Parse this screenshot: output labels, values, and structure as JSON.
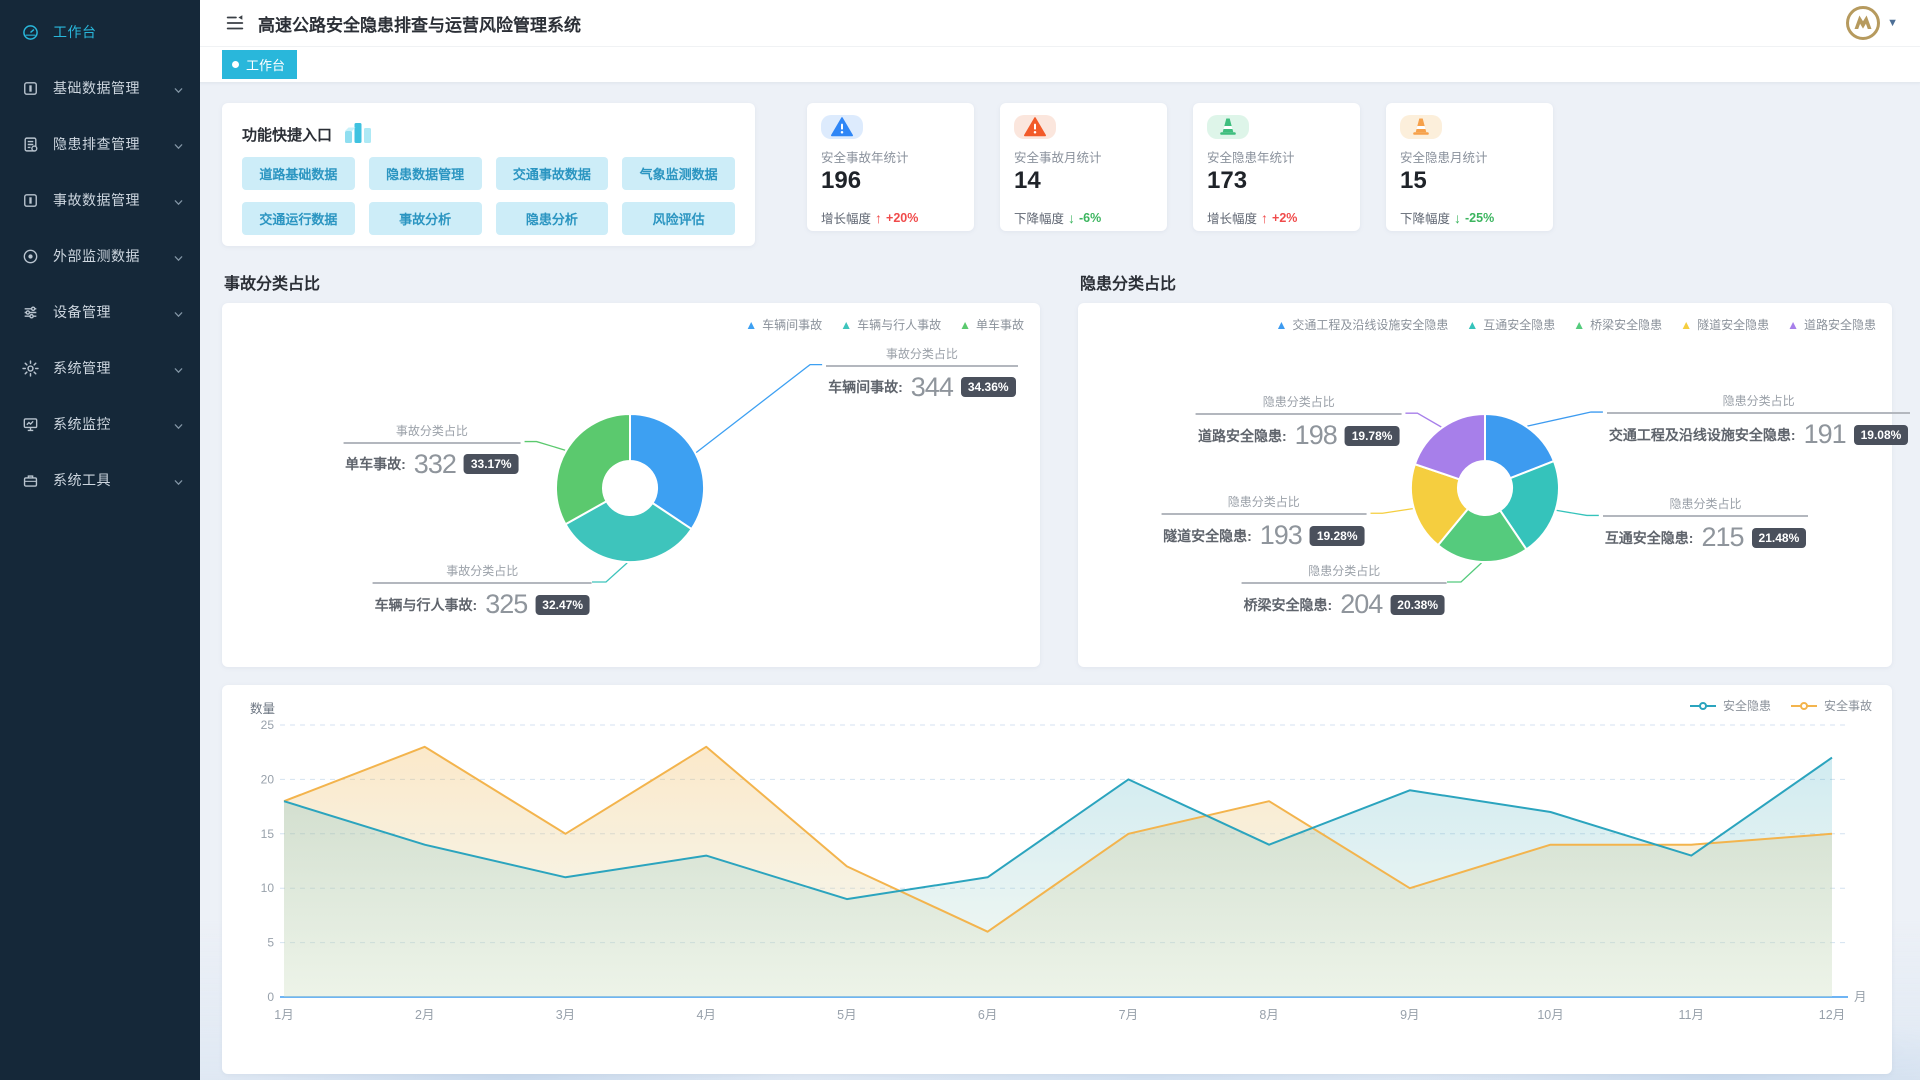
{
  "theme": {
    "accent": "#29b7db",
    "sidebar_bg": "#152839",
    "page_bg": "#edf1f7",
    "badge_bg": "#4a505c"
  },
  "header": {
    "title": "高速公路安全隐患排查与运营风险管理系统",
    "menu_icon": "collapse-menu-icon",
    "avatar_icon": "gold-m-logo",
    "caret_icon": "chevron-down-icon"
  },
  "tabs": {
    "active": "工作台"
  },
  "sidebar": {
    "items": [
      {
        "label": "工作台",
        "icon": "dashboard-icon",
        "active": true,
        "expandable": false
      },
      {
        "label": "基础数据管理",
        "icon": "base-data-icon",
        "active": false,
        "expandable": true
      },
      {
        "label": "隐患排查管理",
        "icon": "hazard-inspection-icon",
        "active": false,
        "expandable": true
      },
      {
        "label": "事故数据管理",
        "icon": "accident-data-icon",
        "active": false,
        "expandable": true
      },
      {
        "label": "外部监测数据",
        "icon": "external-monitor-icon",
        "active": false,
        "expandable": true
      },
      {
        "label": "设备管理",
        "icon": "device-sliders-icon",
        "active": false,
        "expandable": true
      },
      {
        "label": "系统管理",
        "icon": "system-gear-icon",
        "active": false,
        "expandable": true
      },
      {
        "label": "系统监控",
        "icon": "system-monitor-icon",
        "active": false,
        "expandable": true
      },
      {
        "label": "系统工具",
        "icon": "toolbox-icon",
        "active": false,
        "expandable": true
      }
    ]
  },
  "quick_entry": {
    "title": "功能快捷入口",
    "icon": "bar-chart-3d-icon",
    "buttons": [
      "道路基础数据",
      "隐患数据管理",
      "交通事故数据",
      "气象监测数据",
      "交通运行数据",
      "事故分析",
      "隐患分析",
      "风险评估"
    ]
  },
  "stat_cards": [
    {
      "label": "安全事故年统计",
      "value": "196",
      "trend_label": "增长幅度",
      "trend_value": "+20%",
      "direction": "up",
      "icon": "warning-triangle-icon",
      "icon_color": "#2f86f6",
      "icon_bg": "#ddebfd",
      "trend_color": "#f04b4b"
    },
    {
      "label": "安全事故月统计",
      "value": "14",
      "trend_label": "下降幅度",
      "trend_value": "-6%",
      "direction": "down",
      "icon": "warning-triangle-icon",
      "icon_color": "#f25a29",
      "icon_bg": "#fbe6dd",
      "trend_color": "#3cb55f"
    },
    {
      "label": "安全隐患年统计",
      "value": "173",
      "trend_label": "增长幅度",
      "trend_value": "+2%",
      "direction": "up",
      "icon": "traffic-cone-icon",
      "icon_color": "#3fbe7e",
      "icon_bg": "#def5e9",
      "trend_color": "#f04b4b"
    },
    {
      "label": "安全隐患月统计",
      "value": "15",
      "trend_label": "下降幅度",
      "trend_value": "-25%",
      "direction": "down",
      "icon": "traffic-cone-icon",
      "icon_color": "#f6a14b",
      "icon_bg": "#fcefdb",
      "trend_color": "#3cb55f"
    }
  ],
  "chart_data": [
    {
      "type": "pie",
      "title": "事故分类占比",
      "callout_title": "事故分类占比",
      "legend_position": "top-right",
      "slices": [
        {
          "name": "车辆间事故",
          "value": 344,
          "pct": "34.36%",
          "color": "#3da0f2"
        },
        {
          "name": "车辆与行人事故",
          "value": 325,
          "pct": "32.47%",
          "color": "#3ec4bc"
        },
        {
          "name": "单车事故",
          "value": 332,
          "pct": "33.17%",
          "color": "#5bc96e"
        }
      ]
    },
    {
      "type": "pie",
      "title": "隐患分类占比",
      "callout_title": "隐患分类占比",
      "legend_position": "top-right",
      "slices": [
        {
          "name": "交通工程及沿线设施安全隐患",
          "value": 191,
          "pct": "19.08%",
          "color": "#3d9bf0"
        },
        {
          "name": "互通安全隐患",
          "value": 215,
          "pct": "21.48%",
          "color": "#35c3bb"
        },
        {
          "name": "桥梁安全隐患",
          "value": 204,
          "pct": "20.38%",
          "color": "#55cb7d"
        },
        {
          "name": "隧道安全隐患",
          "value": 193,
          "pct": "19.28%",
          "color": "#f5ce3f"
        },
        {
          "name": "道路安全隐患",
          "value": 198,
          "pct": "19.78%",
          "color": "#a77fea"
        }
      ]
    },
    {
      "type": "line",
      "title": "",
      "ylabel": "数量",
      "x_unit": "月",
      "categories": [
        "1月",
        "2月",
        "3月",
        "4月",
        "5月",
        "6月",
        "7月",
        "8月",
        "9月",
        "10月",
        "11月",
        "12月"
      ],
      "ylim": [
        0,
        25
      ],
      "y_ticks": [
        0,
        5,
        10,
        15,
        20,
        25
      ],
      "grid": true,
      "legend_position": "top-right",
      "series": [
        {
          "name": "安全隐患",
          "color": "#2ba4be",
          "values": [
            18,
            14,
            11,
            13,
            9,
            11,
            20,
            14,
            19,
            17,
            13,
            22
          ]
        },
        {
          "name": "安全事故",
          "color": "#f3b44d",
          "values": [
            18,
            23,
            15,
            23,
            12,
            6,
            15,
            18,
            10,
            14,
            14,
            15
          ]
        }
      ]
    }
  ]
}
